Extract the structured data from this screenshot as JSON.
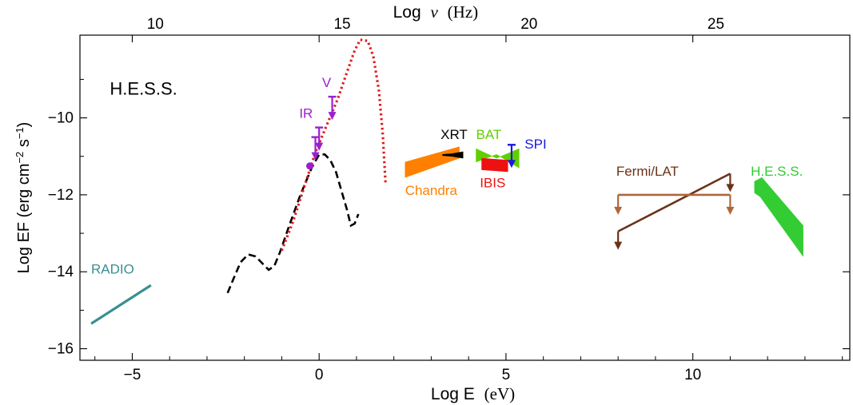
{
  "chart_data": {
    "type": "scatter",
    "title": "",
    "xlabel_main": "Log E",
    "xlabel_unit": "(eV)",
    "top_label_main": "Log",
    "top_label_nu": "ν",
    "top_label_unit": "(Hz)",
    "ylabel_main": "Log EF (erg cm",
    "ylabel_sup1": "−2",
    "ylabel_mid": " s",
    "ylabel_sup2": "−1",
    "ylabel_close": ")",
    "panel_label": "H.E.S.S.",
    "xlim": [
      -6.4,
      14.2
    ],
    "ylim": [
      -16.3,
      -7.85
    ],
    "x_ticks": [
      {
        "v": -5,
        "label": "−5"
      },
      {
        "v": 0,
        "label": "0"
      },
      {
        "v": 5,
        "label": "5"
      },
      {
        "v": 10,
        "label": "10"
      }
    ],
    "y_ticks": [
      {
        "v": -10,
        "label": "−10"
      },
      {
        "v": -12,
        "label": "−12"
      },
      {
        "v": -14,
        "label": "−14"
      },
      {
        "v": -16,
        "label": "−16"
      }
    ],
    "top_ticks": [
      {
        "v": 10,
        "label": "10"
      },
      {
        "v": 15,
        "label": "15"
      },
      {
        "v": 20,
        "label": "20"
      },
      {
        "v": 25,
        "label": "25"
      }
    ],
    "nu_offset": 14.383,
    "colors": {
      "radio": "#3a8f91",
      "optical": "#9b1fd0",
      "sync_model": "#e01b1b",
      "dashed_model": "#000000",
      "chandra": "#ff8000",
      "xrt": "#000000",
      "bat": "#60cf00",
      "ibis": "#ee1111",
      "spi": "#1919e0",
      "fermi": "#6b3219",
      "fermi_band": "#b0663a",
      "hess": "#33cc33"
    },
    "series": [
      {
        "name": "RADIO",
        "kind": "line",
        "color_key": "radio",
        "points": [
          [
            -6.1,
            -15.35
          ],
          [
            -4.5,
            -14.35
          ]
        ],
        "label_at": [
          -6.1,
          -14.05
        ]
      },
      {
        "name": "",
        "kind": "dashed",
        "color_key": "dashed_model",
        "points": [
          [
            -2.45,
            -14.55
          ],
          [
            -2.3,
            -14.2
          ],
          [
            -2.1,
            -13.75
          ],
          [
            -1.9,
            -13.55
          ],
          [
            -1.7,
            -13.6
          ],
          [
            -1.5,
            -13.8
          ],
          [
            -1.35,
            -13.95
          ],
          [
            -1.2,
            -13.85
          ],
          [
            -1.05,
            -13.5
          ],
          [
            -0.8,
            -12.8
          ],
          [
            -0.5,
            -12.0
          ],
          [
            -0.2,
            -11.3
          ],
          [
            0.0,
            -10.95
          ],
          [
            0.15,
            -10.95
          ],
          [
            0.3,
            -11.1
          ],
          [
            0.45,
            -11.4
          ],
          [
            0.6,
            -11.9
          ],
          [
            0.75,
            -12.4
          ],
          [
            0.85,
            -12.8
          ],
          [
            0.95,
            -12.75
          ],
          [
            1.05,
            -12.5
          ]
        ]
      },
      {
        "name": "",
        "kind": "dotted",
        "color_key": "sync_model",
        "points": [
          [
            -1.0,
            -13.45
          ],
          [
            -0.7,
            -12.7
          ],
          [
            -0.4,
            -11.8
          ],
          [
            -0.1,
            -10.9
          ],
          [
            0.2,
            -10.2
          ],
          [
            0.5,
            -9.5
          ],
          [
            0.75,
            -8.8
          ],
          [
            0.95,
            -8.25
          ],
          [
            1.1,
            -7.97
          ],
          [
            1.3,
            -8.0
          ],
          [
            1.45,
            -8.4
          ],
          [
            1.6,
            -9.3
          ],
          [
            1.7,
            -10.4
          ],
          [
            1.78,
            -11.75
          ]
        ]
      },
      {
        "name": "",
        "kind": "point",
        "color_key": "optical",
        "points": [
          [
            -0.25,
            -11.25
          ]
        ]
      },
      {
        "name": "",
        "kind": "upper_limit",
        "color_key": "optical",
        "points": [
          [
            -0.1,
            -10.5
          ],
          [
            0.0,
            -10.25
          ],
          [
            0.35,
            -9.45
          ]
        ]
      },
      {
        "name": "Chandra",
        "kind": "band",
        "color_key": "chandra",
        "points": [
          [
            2.3,
            -11.15
          ],
          [
            3.75,
            -10.75
          ],
          [
            3.75,
            -11.05
          ],
          [
            2.3,
            -11.55
          ]
        ],
        "label_at": [
          2.3,
          -12.0
        ]
      },
      {
        "name": "XRT",
        "kind": "band",
        "color_key": "xrt",
        "points": [
          [
            3.3,
            -10.95
          ],
          [
            3.55,
            -10.93
          ],
          [
            3.85,
            -10.88
          ],
          [
            3.85,
            -11.05
          ],
          [
            3.55,
            -11.0
          ],
          [
            3.3,
            -10.98
          ]
        ],
        "label_at": [
          3.25,
          -10.55
        ]
      },
      {
        "name": "BAT",
        "kind": "band",
        "color_key": "bat",
        "points": [
          [
            4.2,
            -10.8
          ],
          [
            4.75,
            -11.05
          ],
          [
            5.35,
            -10.8
          ],
          [
            5.35,
            -11.3
          ],
          [
            4.75,
            -10.95
          ],
          [
            4.2,
            -11.15
          ]
        ],
        "label_at": [
          4.2,
          -10.55
        ]
      },
      {
        "name": "IBIS",
        "kind": "band",
        "color_key": "ibis",
        "points": [
          [
            4.35,
            -11.05
          ],
          [
            5.05,
            -11.1
          ],
          [
            5.05,
            -11.4
          ],
          [
            4.35,
            -11.35
          ]
        ],
        "label_at": [
          4.3,
          -11.8
        ]
      },
      {
        "name": "SPI",
        "kind": "upper_limit",
        "color_key": "spi",
        "points": [
          [
            5.15,
            -10.7
          ]
        ],
        "label_at": [
          5.5,
          -10.8
        ]
      },
      {
        "name": "Fermi/LAT",
        "kind": "upper_limit",
        "color_key": "fermi",
        "points": [
          [
            8.0,
            -12.95
          ],
          [
            11.0,
            -11.45
          ]
        ],
        "label_at": [
          7.95,
          -11.5
        ]
      },
      {
        "name": "",
        "kind": "band_limit",
        "color_key": "fermi_band",
        "points": [
          [
            8.0,
            -12.0
          ],
          [
            11.0,
            -12.0
          ]
        ]
      },
      {
        "name": "H.E.S.S.",
        "kind": "band",
        "color_key": "hess",
        "points": [
          [
            11.65,
            -11.65
          ],
          [
            11.85,
            -11.55
          ],
          [
            12.95,
            -12.8
          ],
          [
            12.95,
            -13.6
          ],
          [
            11.8,
            -12.05
          ],
          [
            11.65,
            -11.95
          ]
        ],
        "label_at": [
          11.55,
          -11.5
        ]
      }
    ],
    "annotations": [
      {
        "text": "IR",
        "color_key": "optical",
        "at": [
          -0.35,
          -10.0
        ]
      },
      {
        "text": "V",
        "color_key": "optical",
        "at": [
          0.2,
          -9.2
        ]
      }
    ],
    "grid": false
  }
}
